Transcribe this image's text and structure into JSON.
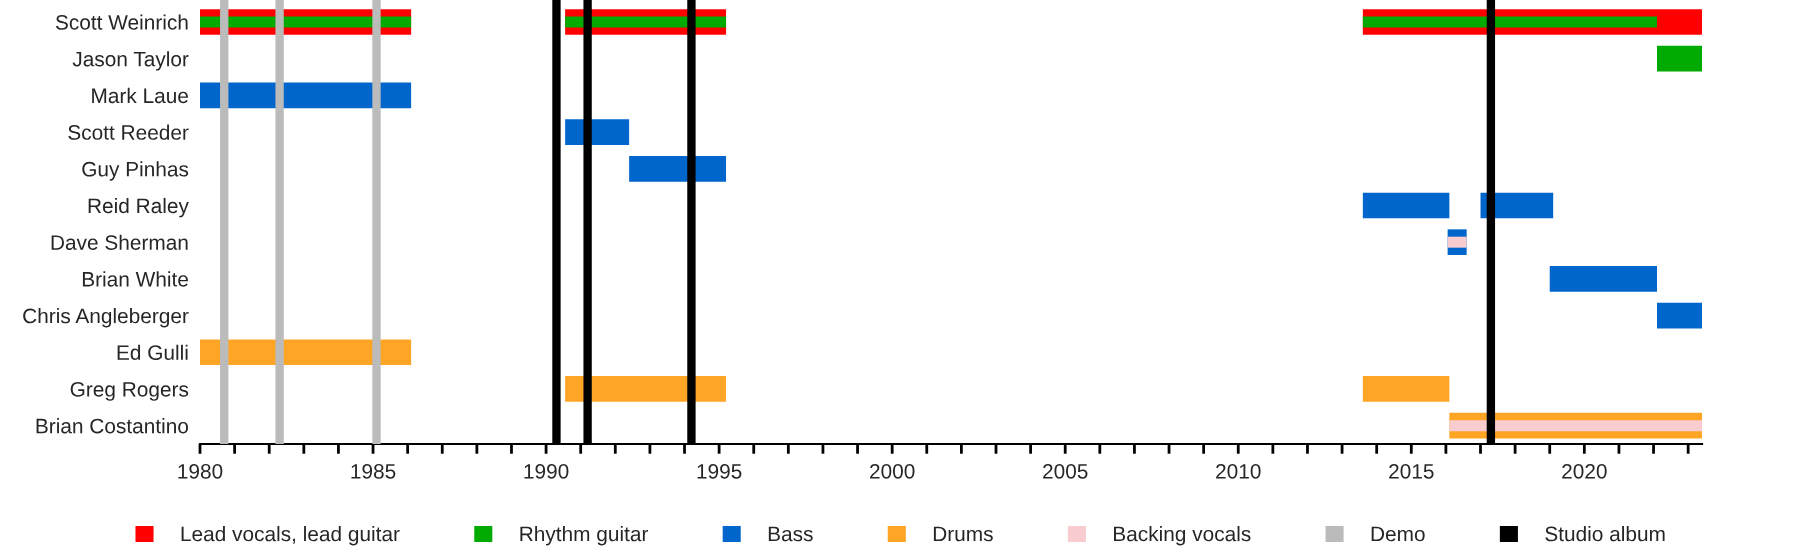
{
  "chart_data": {
    "type": "bar",
    "orientation": "horizontal",
    "categories": [
      "Scott Weinrich",
      "Jason Taylor",
      "Mark Laue",
      "Scott Reeder",
      "Guy Pinhas",
      "Reid Raley",
      "Dave Sherman",
      "Brian White",
      "Chris Angleberger",
      "Ed Gulli",
      "Greg Rogers",
      "Brian Costantino"
    ],
    "series": [
      {
        "name": "Lead vocals, lead guitar",
        "color": "#ff0000",
        "base": [
          1980,
          null,
          null,
          null,
          null,
          null,
          null,
          null,
          null,
          null,
          null,
          null
        ],
        "values": [
          6.1,
          null,
          null,
          null,
          null,
          null,
          null,
          null,
          null,
          null,
          null,
          null
        ]
      },
      {
        "color": "#ff0000",
        "base": [
          1990.55,
          null,
          null,
          null,
          null,
          null,
          null,
          null,
          null,
          null,
          null,
          null
        ],
        "values": [
          4.65,
          null,
          null,
          null,
          null,
          null,
          null,
          null,
          null,
          null,
          null,
          null
        ]
      },
      {
        "color": "#ff0000",
        "base": [
          2013.6,
          null,
          null,
          null,
          null,
          null,
          null,
          null,
          null,
          null,
          null,
          null
        ],
        "values": [
          9.8,
          null,
          null,
          null,
          null,
          null,
          null,
          null,
          null,
          null,
          null,
          null
        ]
      },
      {
        "name": "Rhythm guitar",
        "color": "#00aa00",
        "base": [
          1980,
          2022.1,
          null,
          null,
          null,
          null,
          null,
          null,
          null,
          null,
          null,
          null
        ],
        "values": [
          6.1,
          1.3,
          null,
          null,
          null,
          null,
          null,
          null,
          null,
          null,
          null,
          null
        ]
      },
      {
        "color": "#00aa00",
        "base": [
          1990.55,
          null,
          null,
          null,
          null,
          null,
          null,
          null,
          null,
          null,
          null,
          null
        ],
        "values": [
          4.65,
          null,
          null,
          null,
          null,
          null,
          null,
          null,
          null,
          null,
          null,
          null
        ]
      },
      {
        "color": "#00aa00",
        "base": [
          2013.6,
          null,
          null,
          null,
          null,
          null,
          null,
          null,
          null,
          null,
          null,
          null
        ],
        "values": [
          8.5,
          null,
          null,
          null,
          null,
          null,
          null,
          null,
          null,
          null,
          null,
          null
        ]
      },
      {
        "name": "Bass",
        "color": "#0066cc",
        "base": [
          null,
          null,
          1980,
          1990.55,
          1992.4,
          2013.6,
          2016.05,
          2019.0,
          2022.1,
          null,
          null,
          null
        ],
        "values": [
          null,
          null,
          6.1,
          1.85,
          2.8,
          2.5,
          0.55,
          3.1,
          1.3,
          null,
          null,
          null
        ]
      },
      {
        "color": "#0066cc",
        "base": [
          null,
          null,
          null,
          null,
          null,
          2017.0,
          null,
          null,
          null,
          null,
          null,
          null
        ],
        "values": [
          null,
          null,
          null,
          null,
          null,
          2.1,
          null,
          null,
          null,
          null,
          null,
          null
        ]
      },
      {
        "name": "Drums",
        "color": "#ffa526",
        "base": [
          null,
          null,
          null,
          null,
          null,
          null,
          null,
          null,
          null,
          1980,
          1990.55,
          2016.1
        ],
        "values": [
          null,
          null,
          null,
          null,
          null,
          null,
          null,
          null,
          null,
          6.1,
          4.65,
          7.3
        ]
      },
      {
        "color": "#ffa526",
        "base": [
          null,
          null,
          null,
          null,
          null,
          null,
          null,
          null,
          null,
          null,
          2013.6,
          null
        ],
        "values": [
          null,
          null,
          null,
          null,
          null,
          null,
          null,
          null,
          null,
          null,
          2.5,
          null
        ]
      },
      {
        "name": "Backing vocals",
        "color": "#f9ccd0",
        "base": [
          null,
          null,
          null,
          null,
          null,
          null,
          2016.05,
          null,
          null,
          null,
          null,
          2016.1
        ],
        "values": [
          null,
          null,
          null,
          null,
          null,
          null,
          0.55,
          null,
          null,
          null,
          null,
          7.3
        ]
      }
    ],
    "ref_lines": [
      {
        "axis": "x",
        "value": 1980.7,
        "label": "Demo",
        "color": "#bbbbbb"
      },
      {
        "axis": "x",
        "value": 1982.3,
        "color": "#bbbbbb"
      },
      {
        "axis": "x",
        "value": 1985.1,
        "color": "#bbbbbb"
      },
      {
        "axis": "x",
        "value": 1990.3,
        "label": "Studio album",
        "color": "#000000"
      },
      {
        "axis": "x",
        "value": 1991.2,
        "color": "#000000"
      },
      {
        "axis": "x",
        "value": 1994.2,
        "color": "#000000"
      },
      {
        "axis": "x",
        "value": 2017.3,
        "color": "#000000"
      }
    ],
    "xlim": [
      1980,
      2023.4
    ],
    "xticks": [
      1980,
      {
        "value": 1981,
        "label": null
      },
      {
        "value": 1982,
        "label": null
      },
      {
        "value": 1983,
        "label": null
      },
      {
        "value": 1984,
        "label": null
      },
      1985,
      {
        "value": 1986,
        "label": null
      },
      {
        "value": 1987,
        "label": null
      },
      {
        "value": 1988,
        "label": null
      },
      {
        "value": 1989,
        "label": null
      },
      1990,
      {
        "value": 1991,
        "label": null
      },
      {
        "value": 1992,
        "label": null
      },
      {
        "value": 1993,
        "label": null
      },
      {
        "value": 1994,
        "label": null
      },
      1995,
      {
        "value": 1996,
        "label": null
      },
      {
        "value": 1997,
        "label": null
      },
      {
        "value": 1998,
        "label": null
      },
      {
        "value": 1999,
        "label": null
      },
      2000,
      {
        "value": 2001,
        "label": null
      },
      {
        "value": 2002,
        "label": null
      },
      {
        "value": 2003,
        "label": null
      },
      {
        "value": 2004,
        "label": null
      },
      2005,
      {
        "value": 2006,
        "label": null
      },
      {
        "value": 2007,
        "label": null
      },
      {
        "value": 2008,
        "label": null
      },
      {
        "value": 2009,
        "label": null
      },
      2010,
      {
        "value": 2011,
        "label": null
      },
      {
        "value": 2012,
        "label": null
      },
      {
        "value": 2013,
        "label": null
      },
      {
        "value": 2014,
        "label": null
      },
      2015,
      {
        "value": 2016,
        "label": null
      },
      {
        "value": 2017,
        "label": null
      },
      {
        "value": 2018,
        "label": null
      },
      {
        "value": 2019,
        "label": null
      },
      2020,
      {
        "value": 2021,
        "label": null
      },
      {
        "value": 2022,
        "label": null
      },
      {
        "value": 2023,
        "label": null
      }
    ],
    "grid": false,
    "legend": "bottom"
  }
}
